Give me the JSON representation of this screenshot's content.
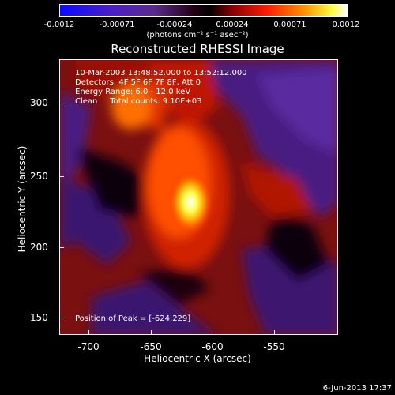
{
  "colorbar": {
    "ticks": [
      "-0.0012",
      "-0.00071",
      "-0.00024",
      "0.00024",
      "0.00071",
      "0.0012"
    ],
    "units": "(photons cm⁻² s⁻¹ asec⁻²)"
  },
  "title": "Reconstructed RHESSI Image",
  "info": {
    "time": "10-Mar-2003 13:48:52.000 to 13:52:12.000",
    "detectors": "Detectors: 4F 5F 6F 7F 8F, Att 0",
    "energy": "Energy Range: 6.0 - 12.0 keV",
    "clean": "Clean     Total counts: 9.10E+03",
    "peak": "Position of Peak = [-624,229]"
  },
  "axes": {
    "xlabel": "Heliocentric X (arcsec)",
    "ylabel": "Heliocentric Y (arcsec)",
    "xticks": [
      "-700",
      "-650",
      "-600",
      "-550"
    ],
    "yticks": [
      "300",
      "250",
      "200",
      "150"
    ]
  },
  "footer_date": "6-Jun-2013 17:37",
  "colors": {
    "background": "#000000",
    "low": "#0000ff",
    "mid": "#ff0000",
    "high": "#ffffff"
  }
}
